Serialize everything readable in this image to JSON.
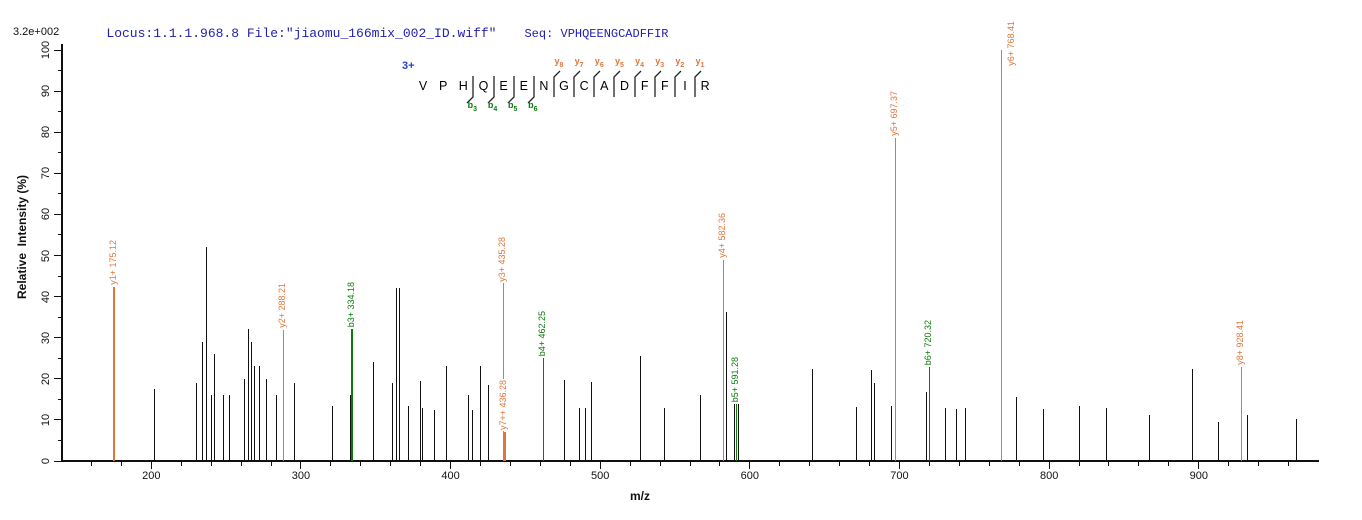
{
  "header": {
    "locus_file": "Locus:1.1.1.968.8 File:\"jiaomu_166mix_002_ID.wiff\"",
    "seq": "Seq: VPHQEENGCADFFIR"
  },
  "peptide": {
    "charge": "3+",
    "sequence": "VPHQEENGCADFFIR",
    "b_marks": [
      {
        "site": 3,
        "ion": "b",
        "num": "3"
      },
      {
        "site": 4,
        "ion": "b",
        "num": "4"
      },
      {
        "site": 5,
        "ion": "b",
        "num": "5"
      },
      {
        "site": 6,
        "ion": "b",
        "num": "6"
      }
    ],
    "y_marks": [
      {
        "site": 7,
        "ion": "y",
        "num": "8"
      },
      {
        "site": 8,
        "ion": "y",
        "num": "7"
      },
      {
        "site": 9,
        "ion": "y",
        "num": "6"
      },
      {
        "site": 10,
        "ion": "y",
        "num": "5"
      },
      {
        "site": 11,
        "ion": "y",
        "num": "4"
      },
      {
        "site": 12,
        "ion": "y",
        "num": "3"
      },
      {
        "site": 13,
        "ion": "y",
        "num": "2"
      },
      {
        "site": 14,
        "ion": "y",
        "num": "1"
      }
    ]
  },
  "chart_data": {
    "type": "bar",
    "subtype": "ms2-centroid-mass-spectrum",
    "title": "Locus:1.1.1.968.8 File:\"jiaomu_166mix_002_ID.wiff\"  Seq: VPHQEENGCADFFIR",
    "xlabel": "m/z",
    "ylabel": "Relative  Intensity (%)",
    "absolute_intensity": "3.2e+002",
    "xlim": [
      141,
      979
    ],
    "ylim": [
      0,
      100
    ],
    "grid": false,
    "x_tick_labels": [
      200,
      300,
      400,
      500,
      600,
      700,
      800,
      900
    ],
    "x_minor_tick_step": 20,
    "y_tick_labels": [
      0,
      10,
      20,
      30,
      40,
      50,
      60,
      70,
      80,
      90,
      100
    ],
    "y_minor_tick_step": 5,
    "colors": {
      "y_ion": "#E0763C",
      "b_ion": "#0B7B0B",
      "peak": "#111111",
      "title": "#2222AE"
    },
    "labeled_peaks": [
      {
        "mz": 175.12,
        "intensity": 42.4,
        "ion": "y1+",
        "type": "y",
        "label": "y1+ 175.12"
      },
      {
        "mz": 288.21,
        "intensity": 31.9,
        "ion": "y2+",
        "type": "y",
        "label": "y2+ 288.21"
      },
      {
        "mz": 334.18,
        "intensity": 32.0,
        "ion": "b3+",
        "type": "b",
        "label": "b3+ 334.18"
      },
      {
        "mz": 435.28,
        "intensity": 43.2,
        "ion": "y3+",
        "type": "y",
        "label": "y3+ 435.28"
      },
      {
        "mz": 436.28,
        "intensity": 7.1,
        "ion": "y7++",
        "type": "y",
        "label": "y7++ 436.28",
        "thick": true
      },
      {
        "mz": 462.25,
        "intensity": 25.0,
        "ion": "b4+",
        "type": "b",
        "label": "b4+ 462.25"
      },
      {
        "mz": 582.36,
        "intensity": 48.9,
        "ion": "y4+",
        "type": "y",
        "label": "y4+ 582.36"
      },
      {
        "mz": 591.28,
        "intensity": 13.9,
        "ion": "b5+",
        "type": "b",
        "label": "b5+ 591.28"
      },
      {
        "mz": 697.37,
        "intensity": 78.7,
        "ion": "y5+",
        "type": "y",
        "label": "y5+ 697.37"
      },
      {
        "mz": 720.32,
        "intensity": 22.9,
        "ion": "b6+",
        "type": "b",
        "label": "b6+ 720.32"
      },
      {
        "mz": 768.41,
        "intensity": 100.0,
        "ion": "y6+",
        "type": "y",
        "label": "y6+ 768.41",
        "label_pos": "right"
      },
      {
        "mz": 928.41,
        "intensity": 22.9,
        "ion": "y8+",
        "type": "y",
        "label": "y8+ 928.41"
      }
    ],
    "unlabeled_peaks": [
      [
        202,
        17.5
      ],
      [
        230,
        19
      ],
      [
        234,
        29
      ],
      [
        237,
        52
      ],
      [
        240.5,
        16
      ],
      [
        242.5,
        26
      ],
      [
        248,
        16
      ],
      [
        252.5,
        16
      ],
      [
        262,
        20
      ],
      [
        265,
        32
      ],
      [
        267,
        29
      ],
      [
        269,
        23
      ],
      [
        272,
        23
      ],
      [
        277,
        20
      ],
      [
        284,
        16
      ],
      [
        296,
        19
      ],
      [
        321,
        13.5
      ],
      [
        333,
        16
      ],
      [
        348.5,
        24
      ],
      [
        361.5,
        19
      ],
      [
        364,
        42
      ],
      [
        365.8,
        42
      ],
      [
        372,
        13.5
      ],
      [
        380,
        19.5
      ],
      [
        381.5,
        13
      ],
      [
        389,
        12.5
      ],
      [
        397.5,
        23
      ],
      [
        412,
        16
      ],
      [
        414.5,
        12.5
      ],
      [
        420,
        23
      ],
      [
        425.5,
        18.5
      ],
      [
        476,
        19.7
      ],
      [
        486,
        12.8
      ],
      [
        490,
        12.8
      ],
      [
        494,
        19.3
      ],
      [
        527,
        25.6
      ],
      [
        543,
        12.8
      ],
      [
        567,
        16
      ],
      [
        584.3,
        36.3
      ],
      [
        589.8,
        13.9
      ],
      [
        592.6,
        13.9
      ],
      [
        642,
        22.4
      ],
      [
        671,
        13.2
      ],
      [
        681,
        22.1
      ],
      [
        683.5,
        19
      ],
      [
        694.5,
        13.4
      ],
      [
        718.3,
        16.9
      ],
      [
        731,
        12.8
      ],
      [
        738,
        12.7
      ],
      [
        744,
        12.8
      ],
      [
        778,
        15.6
      ],
      [
        796.5,
        12.6
      ],
      [
        820.5,
        13.4
      ],
      [
        838.5,
        12.8
      ],
      [
        867,
        11.1
      ],
      [
        896,
        22.4
      ],
      [
        913,
        9.6
      ],
      [
        932.5,
        11.2
      ],
      [
        965,
        10.1
      ]
    ]
  }
}
